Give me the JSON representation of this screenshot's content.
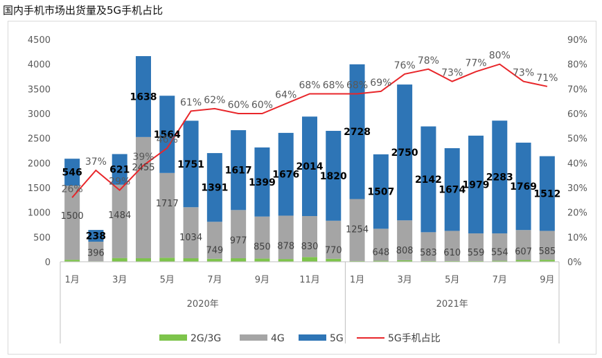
{
  "title": "国内手机市场出货量及5G手机占比",
  "colors": {
    "g23": "#7dc44b",
    "g4": "#a5a5a5",
    "g5": "#2e75b6",
    "share": "#e8262a"
  },
  "chart_data": {
    "type": "bar",
    "stacked": true,
    "categories": [
      "2020-01",
      "2020-02",
      "2020-03",
      "2020-04",
      "2020-05",
      "2020-06",
      "2020-07",
      "2020-08",
      "2020-09",
      "2020-10",
      "2020-11",
      "2020-12",
      "2021-01",
      "2021-02",
      "2021-03",
      "2021-04",
      "2021-05",
      "2021-06",
      "2021-07",
      "2021-08",
      "2021-09"
    ],
    "month_labels": [
      "1月",
      "",
      "3月",
      "",
      "5月",
      "",
      "7月",
      "",
      "9月",
      "",
      "11月",
      "",
      "1月",
      "",
      "3月",
      "",
      "5月",
      "",
      "7月",
      "",
      "9月"
    ],
    "year_groups": [
      {
        "label": "2020年",
        "start": 0,
        "end": 11
      },
      {
        "label": "2021年",
        "start": 12,
        "end": 20
      }
    ],
    "series": [
      {
        "name": "2G/3G",
        "type": "bar",
        "values": [
          40,
          10,
          75,
          70,
          80,
          70,
          60,
          70,
          65,
          55,
          95,
          60,
          15,
          20,
          30,
          15,
          15,
          15,
          20,
          35,
          40
        ]
      },
      {
        "name": "4G",
        "type": "bar",
        "values": [
          1500,
          396,
          1484,
          2455,
          1717,
          1034,
          749,
          977,
          850,
          878,
          830,
          770,
          1254,
          648,
          808,
          583,
          610,
          559,
          554,
          607,
          585
        ]
      },
      {
        "name": "5G",
        "type": "bar",
        "values": [
          546,
          238,
          621,
          1638,
          1564,
          1751,
          1391,
          1617,
          1399,
          1676,
          2014,
          1820,
          2728,
          1507,
          2750,
          2142,
          1674,
          1979,
          2283,
          1769,
          1512
        ]
      },
      {
        "name": "5G手机占比",
        "type": "line",
        "axis": "right",
        "values": [
          26,
          37,
          29,
          39,
          46,
          61,
          62,
          60,
          60,
          64,
          68,
          68,
          68,
          69,
          76,
          78,
          73,
          77,
          80,
          73,
          71
        ]
      }
    ],
    "share_labels": [
      "26%",
      "37%",
      "29%",
      "39%",
      "46%",
      "61%",
      "62%",
      "60%",
      "60%",
      "64%",
      "68%",
      "68%",
      "68%",
      "69%",
      "76%",
      "78%",
      "73%",
      "77%",
      "80%",
      "73%",
      "71%"
    ],
    "ylim": [
      0,
      4500
    ],
    "y_ticks": [
      "0",
      "500",
      "1000",
      "1500",
      "2000",
      "2500",
      "3000",
      "3500",
      "4000",
      "4500"
    ],
    "y2lim": [
      0,
      90
    ],
    "y2_ticks": [
      "0%",
      "10%",
      "20%",
      "30%",
      "40%",
      "50%",
      "60%",
      "70%",
      "80%",
      "90%"
    ],
    "legend_position": "bottom",
    "grid": false
  }
}
